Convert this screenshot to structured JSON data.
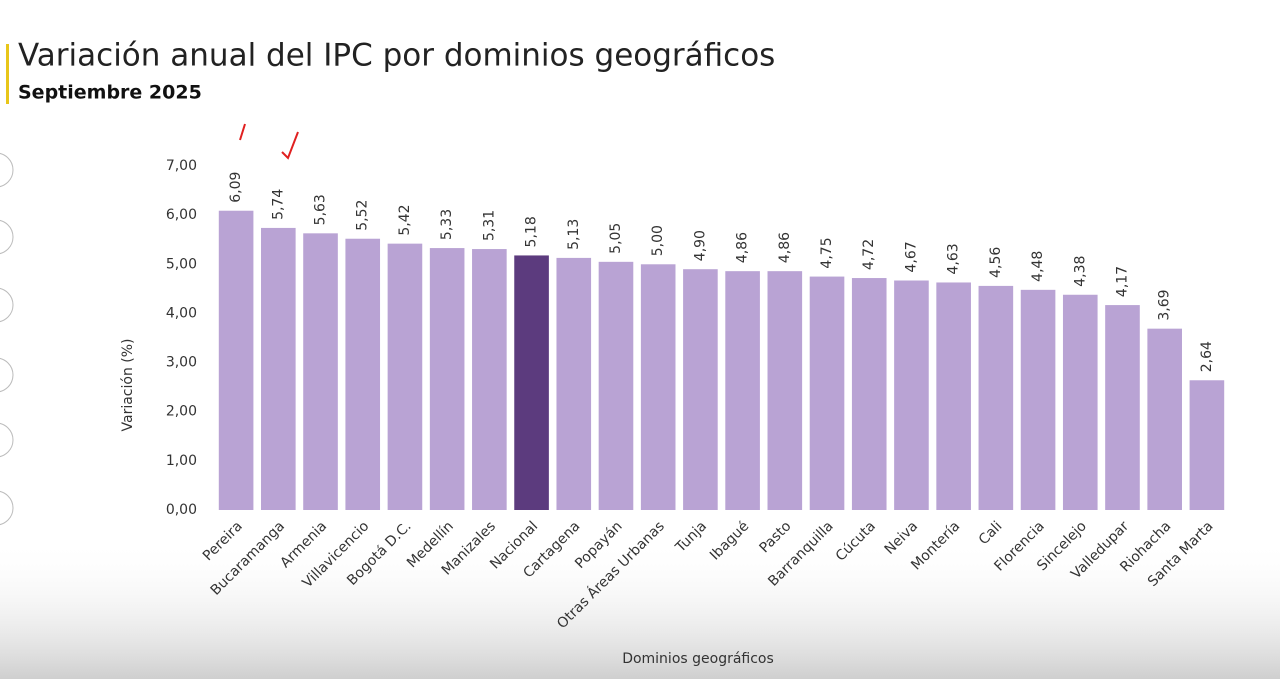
{
  "chart_data": {
    "type": "bar",
    "title": "Variación anual del IPC por dominios geográficos",
    "subtitle": "Septiembre 2025",
    "y_label": "Variación (%)",
    "x_label": "Dominios geográficos",
    "categories": [
      "Pereira",
      "Bucaramanga",
      "Armenia",
      "Villavicencio",
      "Bogotá D.C.",
      "Medellín",
      "Manizales",
      "Nacional",
      "Cartagena",
      "Popayán",
      "Otras Áreas Urbanas",
      "Tunja",
      "Ibagué",
      "Pasto",
      "Barranquilla",
      "Cúcuta",
      "Neiva",
      "Montería",
      "Cali",
      "Florencia",
      "Sincelejo",
      "Valledupar",
      "Riohacha",
      "Santa Marta"
    ],
    "values": [
      6.09,
      5.74,
      5.63,
      5.52,
      5.42,
      5.33,
      5.31,
      5.18,
      5.13,
      5.05,
      5.0,
      4.9,
      4.86,
      4.86,
      4.75,
      4.72,
      4.67,
      4.63,
      4.56,
      4.48,
      4.38,
      4.17,
      3.69,
      2.64
    ],
    "value_labels": [
      "6,09",
      "5,74",
      "5,63",
      "5,52",
      "5,42",
      "5,33",
      "5,31",
      "5,18",
      "5,13",
      "5,05",
      "5,00",
      "4,90",
      "4,86",
      "4,86",
      "4,75",
      "4,72",
      "4,67",
      "4,63",
      "4,56",
      "4,48",
      "4,38",
      "4,17",
      "3,69",
      "2,64"
    ],
    "colors": [
      "#b9a3d4",
      "#b9a3d4",
      "#b9a3d4",
      "#b9a3d4",
      "#b9a3d4",
      "#b9a3d4",
      "#b9a3d4",
      "#5c3b7e",
      "#b9a3d4",
      "#b9a3d4",
      "#b9a3d4",
      "#b9a3d4",
      "#b9a3d4",
      "#b9a3d4",
      "#b9a3d4",
      "#b9a3d4",
      "#b9a3d4",
      "#b9a3d4",
      "#b9a3d4",
      "#b9a3d4",
      "#b9a3d4",
      "#b9a3d4",
      "#b9a3d4",
      "#b9a3d4"
    ],
    "ylim": [
      0,
      7
    ],
    "yticks": [
      {
        "value": 0,
        "label": "0,00"
      },
      {
        "value": 1,
        "label": "1,00"
      },
      {
        "value": 2,
        "label": "2,00"
      },
      {
        "value": 3,
        "label": "3,00"
      },
      {
        "value": 4,
        "label": "4,00"
      },
      {
        "value": 5,
        "label": "5,00"
      },
      {
        "value": 6,
        "label": "6,00"
      },
      {
        "value": 7,
        "label": "7,00"
      }
    ],
    "grid": false
  }
}
